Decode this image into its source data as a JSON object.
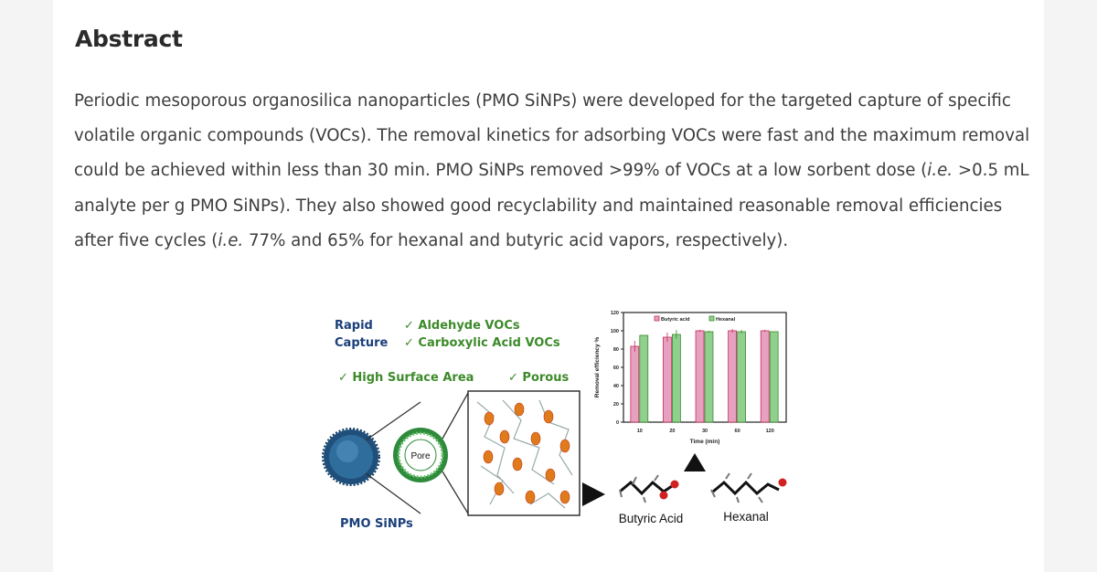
{
  "abstract": {
    "heading": "Abstract",
    "p1": "Periodic mesoporous organosilica nanoparticles (PMO SiNPs) were developed for the targeted capture of specific volatile organic compounds (VOCs). The removal kinetics for adsorbing VOCs were fast and the maximum removal could be achieved within less than 30 min. PMO SiNPs removed >99% of VOCs at a low sorbent dose (",
    "ie1": "i.e.",
    "p2": " >0.5 mL analyte per g PMO SiNPs). They also showed good recyclability and maintained reasonable removal efficiencies after five cycles (",
    "ie2": "i.e.",
    "p3": " 77% and 65% for hexanal and butyric acid vapors, respectively)."
  },
  "graphic": {
    "rapid": "Rapid",
    "capture": "Capture",
    "aldehyde": "✓ Aldehyde VOCs",
    "carboxylic": "✓ Carboxylic Acid VOCs",
    "surface": "✓ High Surface Area",
    "porous": "✓ Porous",
    "pore": "Pore",
    "pmo": "PMO SiNPs",
    "butyric": "Butyric Acid",
    "hexanal": "Hexanal",
    "colors": {
      "blue": "#1a3f7a",
      "green": "#3d8a2a",
      "pink": "#e8a0c0",
      "lightgreen": "#8fd08f"
    }
  },
  "chart_data": {
    "type": "bar",
    "categories": [
      "10",
      "20",
      "30",
      "60",
      "120"
    ],
    "series": [
      {
        "name": "Butyric acid",
        "values": [
          83,
          93,
          100,
          100,
          100
        ],
        "errors": [
          6,
          5,
          1,
          2,
          1
        ]
      },
      {
        "name": "Hexanal",
        "values": [
          95,
          96,
          99,
          99,
          99
        ],
        "errors": [
          0,
          5,
          1,
          2,
          0
        ]
      }
    ],
    "xlabel": "Time (min)",
    "ylabel": "Removal efficiency %",
    "yticks": [
      "0",
      "20",
      "40",
      "60",
      "80",
      "100",
      "120"
    ],
    "ylim": [
      0,
      120
    ],
    "legend": "top",
    "colors": {
      "Butyric acid": "#e8a0c0",
      "Hexanal": "#8fd08f"
    }
  }
}
